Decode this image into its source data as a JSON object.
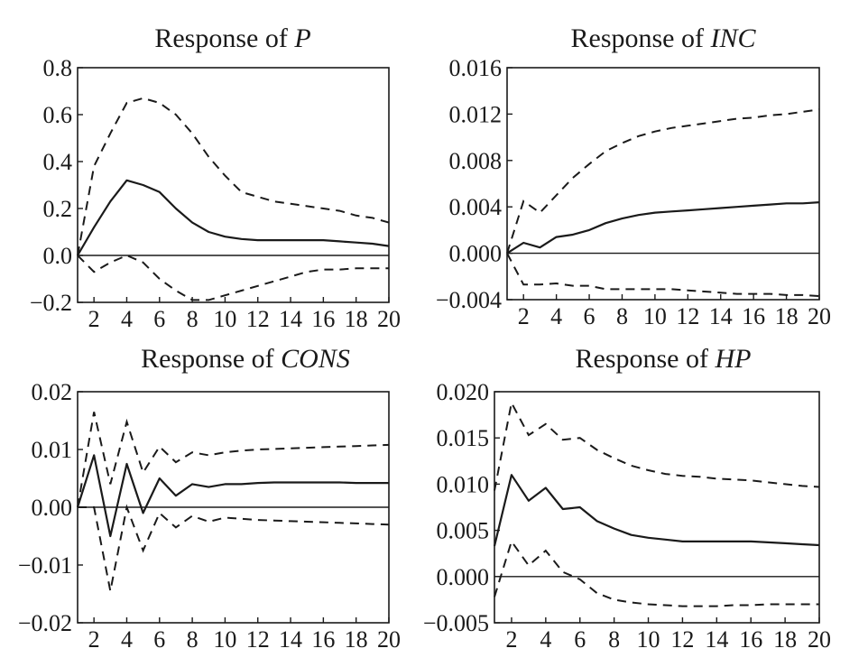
{
  "chart_data": [
    {
      "type": "line",
      "title_prefix": "Response of ",
      "title_var": "P",
      "x": [
        1,
        2,
        3,
        4,
        5,
        6,
        7,
        8,
        9,
        10,
        11,
        12,
        13,
        14,
        15,
        16,
        17,
        18,
        19,
        20
      ],
      "xticks": [
        2,
        4,
        6,
        8,
        10,
        12,
        14,
        16,
        18,
        20
      ],
      "xlim": [
        1,
        20
      ],
      "ylim": [
        -0.2,
        0.8
      ],
      "yticks": [
        {
          "value": -0.2,
          "label": "−0.2"
        },
        {
          "value": 0.0,
          "label": "0.0"
        },
        {
          "value": 0.2,
          "label": "0.2"
        },
        {
          "value": 0.4,
          "label": "0.4"
        },
        {
          "value": 0.6,
          "label": "0.6"
        },
        {
          "value": 0.8,
          "label": "0.8"
        }
      ],
      "series": [
        {
          "style": "solid",
          "values": [
            0.0,
            0.12,
            0.23,
            0.32,
            0.3,
            0.27,
            0.2,
            0.14,
            0.1,
            0.08,
            0.07,
            0.065,
            0.065,
            0.065,
            0.065,
            0.065,
            0.06,
            0.055,
            0.05,
            0.04
          ]
        },
        {
          "style": "dashed",
          "values": [
            0.0,
            0.38,
            0.52,
            0.65,
            0.67,
            0.65,
            0.6,
            0.52,
            0.42,
            0.34,
            0.27,
            0.25,
            0.23,
            0.22,
            0.21,
            0.2,
            0.19,
            0.17,
            0.16,
            0.14
          ]
        },
        {
          "style": "dashed",
          "values": [
            0.0,
            -0.07,
            -0.03,
            0.0,
            -0.03,
            -0.1,
            -0.15,
            -0.19,
            -0.19,
            -0.17,
            -0.15,
            -0.13,
            -0.11,
            -0.09,
            -0.07,
            -0.06,
            -0.06,
            -0.055,
            -0.055,
            -0.055
          ]
        }
      ]
    },
    {
      "type": "line",
      "title_prefix": "Response of ",
      "title_var": "INC",
      "x": [
        1,
        2,
        3,
        4,
        5,
        6,
        7,
        8,
        9,
        10,
        11,
        12,
        13,
        14,
        15,
        16,
        17,
        18,
        19,
        20
      ],
      "xticks": [
        2,
        4,
        6,
        8,
        10,
        12,
        14,
        16,
        18,
        20
      ],
      "xlim": [
        1,
        20
      ],
      "ylim": [
        -0.004,
        0.016
      ],
      "yticks": [
        {
          "value": -0.004,
          "label": "−0.004"
        },
        {
          "value": 0.0,
          "label": "0.000"
        },
        {
          "value": 0.004,
          "label": "0.004"
        },
        {
          "value": 0.008,
          "label": "0.008"
        },
        {
          "value": 0.012,
          "label": "0.012"
        },
        {
          "value": 0.016,
          "label": "0.016"
        }
      ],
      "series": [
        {
          "style": "solid",
          "values": [
            0.0,
            0.0009,
            0.0005,
            0.0014,
            0.0016,
            0.002,
            0.0026,
            0.003,
            0.0033,
            0.0035,
            0.0036,
            0.0037,
            0.0038,
            0.0039,
            0.004,
            0.0041,
            0.0042,
            0.0043,
            0.0043,
            0.0044
          ]
        },
        {
          "style": "dashed",
          "values": [
            0.0,
            0.0045,
            0.0035,
            0.005,
            0.0065,
            0.0077,
            0.0088,
            0.0095,
            0.0101,
            0.0105,
            0.0108,
            0.011,
            0.0112,
            0.0114,
            0.0116,
            0.0117,
            0.0119,
            0.012,
            0.0122,
            0.0124
          ]
        },
        {
          "style": "dashed",
          "values": [
            0.0,
            -0.0027,
            -0.0027,
            -0.0026,
            -0.0028,
            -0.0028,
            -0.0031,
            -0.0031,
            -0.0031,
            -0.0031,
            -0.0031,
            -0.0032,
            -0.0033,
            -0.0034,
            -0.0035,
            -0.0035,
            -0.0035,
            -0.0036,
            -0.0036,
            -0.0037
          ]
        }
      ]
    },
    {
      "type": "line",
      "title_prefix": "Response of ",
      "title_var": "CONS",
      "x": [
        1,
        2,
        3,
        4,
        5,
        6,
        7,
        8,
        9,
        10,
        11,
        12,
        13,
        14,
        15,
        16,
        17,
        18,
        19,
        20
      ],
      "xticks": [
        2,
        4,
        6,
        8,
        10,
        12,
        14,
        16,
        18,
        20
      ],
      "xlim": [
        1,
        20
      ],
      "ylim": [
        -0.02,
        0.02
      ],
      "yticks": [
        {
          "value": -0.02,
          "label": "−0.02"
        },
        {
          "value": -0.01,
          "label": "−0.01"
        },
        {
          "value": 0.0,
          "label": "0.00"
        },
        {
          "value": 0.01,
          "label": "0.01"
        },
        {
          "value": 0.02,
          "label": "0.02"
        }
      ],
      "series": [
        {
          "style": "solid",
          "values": [
            0.0,
            0.009,
            -0.005,
            0.0075,
            -0.001,
            0.005,
            0.002,
            0.004,
            0.0035,
            0.004,
            0.004,
            0.0042,
            0.0043,
            0.0043,
            0.0043,
            0.0043,
            0.0043,
            0.0042,
            0.0042,
            0.0042
          ]
        },
        {
          "style": "dashed",
          "values": [
            0.0,
            0.0165,
            0.004,
            0.0148,
            0.006,
            0.0105,
            0.0078,
            0.0095,
            0.009,
            0.0095,
            0.0098,
            0.01,
            0.0101,
            0.0102,
            0.0103,
            0.0104,
            0.0105,
            0.0106,
            0.0107,
            0.0108
          ]
        },
        {
          "style": "dashed",
          "values": [
            0.0,
            0.0,
            -0.0145,
            0.0,
            -0.0075,
            -0.001,
            -0.0035,
            -0.0015,
            -0.0025,
            -0.0018,
            -0.002,
            -0.0022,
            -0.0023,
            -0.0024,
            -0.0025,
            -0.0026,
            -0.0027,
            -0.0028,
            -0.0029,
            -0.003
          ]
        }
      ]
    },
    {
      "type": "line",
      "title_prefix": "Response of ",
      "title_var": "HP",
      "x": [
        1,
        2,
        3,
        4,
        5,
        6,
        7,
        8,
        9,
        10,
        11,
        12,
        13,
        14,
        15,
        16,
        17,
        18,
        19,
        20
      ],
      "xticks": [
        2,
        4,
        6,
        8,
        10,
        12,
        14,
        16,
        18,
        20
      ],
      "xlim": [
        1,
        20
      ],
      "ylim": [
        -0.005,
        0.02
      ],
      "yticks": [
        {
          "value": -0.005,
          "label": "−0.005"
        },
        {
          "value": 0.0,
          "label": "0.000"
        },
        {
          "value": 0.005,
          "label": "0.005"
        },
        {
          "value": 0.01,
          "label": "0.010"
        },
        {
          "value": 0.015,
          "label": "0.015"
        },
        {
          "value": 0.02,
          "label": "0.020"
        }
      ],
      "series": [
        {
          "style": "solid",
          "values": [
            0.0033,
            0.011,
            0.0082,
            0.0096,
            0.0073,
            0.0075,
            0.006,
            0.0052,
            0.0045,
            0.0042,
            0.004,
            0.0038,
            0.0038,
            0.0038,
            0.0038,
            0.0038,
            0.0037,
            0.0036,
            0.0035,
            0.0034
          ]
        },
        {
          "style": "dashed",
          "values": [
            0.0093,
            0.0188,
            0.0153,
            0.0165,
            0.0148,
            0.015,
            0.0137,
            0.0128,
            0.012,
            0.0115,
            0.0111,
            0.0109,
            0.0108,
            0.0106,
            0.0105,
            0.0104,
            0.0102,
            0.01,
            0.0098,
            0.0097
          ]
        },
        {
          "style": "dashed",
          "values": [
            -0.0022,
            0.0038,
            0.0012,
            0.0028,
            0.0005,
            -0.0003,
            -0.0018,
            -0.0025,
            -0.0028,
            -0.003,
            -0.0031,
            -0.0032,
            -0.0032,
            -0.0032,
            -0.0031,
            -0.0031,
            -0.003,
            -0.003,
            -0.003,
            -0.003
          ]
        }
      ]
    }
  ]
}
